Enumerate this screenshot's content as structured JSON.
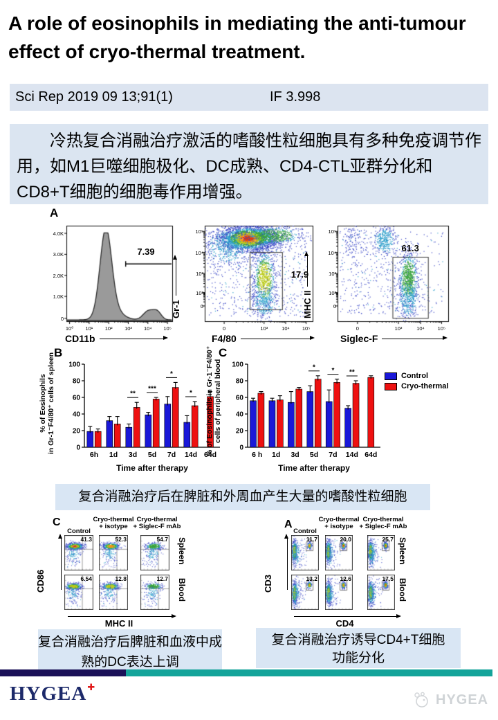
{
  "title": " A role of eosinophils in mediating the anti-tumour\neffect of cryo-thermal treatment.",
  "citation": {
    "reference": "Sci Rep 2019 09 13;91(1)",
    "impact_factor": "IF 3.998"
  },
  "summary": "冷热复合消融治疗激活的嗜酸性粒细胞具有多种免疫调节作用，如M1巨噬细胞极化、DC成熟、CD4-CTL亚群分化和CD8+T细胞的细胞毒作用增强。",
  "figure_a": {
    "panel": "A",
    "histogram": {
      "gate_value": "7.39",
      "xlabel": "CD11b",
      "yticks": [
        "4.0K",
        "3.0K",
        "2.0K",
        "1.0K",
        "0"
      ],
      "xticks": [
        "10⁰",
        "10¹",
        "10²",
        "10³",
        "10⁴",
        "10⁵"
      ]
    },
    "scatter_gr1": {
      "gate_value": "17.9",
      "xlabel": "F4/80",
      "ylabel": "Gr-1",
      "yticks": [
        "10⁵",
        "10⁴",
        "10³",
        "10²",
        "0"
      ],
      "xticks": [
        "0",
        "10³",
        "10⁴",
        "10⁵"
      ]
    },
    "scatter_mhc": {
      "gate_value": "61.3",
      "xlabel": "Siglec-F",
      "ylabel": "MHC II",
      "yticks": [
        "10⁵",
        "10⁴",
        "10³",
        "10²",
        "0"
      ],
      "xticks": [
        "0",
        "10³",
        "10⁴",
        "10⁵"
      ]
    }
  },
  "chart_data": [
    {
      "type": "bar",
      "panel": "B",
      "categories": [
        "6h",
        "1d",
        "3d",
        "5d",
        "7d",
        "14d",
        "64d"
      ],
      "series": [
        {
          "name": "Control",
          "color": "#1a18d8",
          "values": [
            19,
            32,
            24,
            39,
            52,
            30,
            null
          ],
          "errors": [
            6,
            5,
            4,
            3,
            9,
            8,
            null
          ]
        },
        {
          "name": "Cryo-thermal",
          "color": "#ee1111",
          "values": [
            19,
            28,
            48,
            58,
            72,
            50,
            61
          ],
          "errors": [
            3,
            9,
            6,
            2,
            6,
            5,
            6
          ]
        }
      ],
      "significance": [
        "",
        "",
        "**",
        "***",
        "*",
        "*",
        ""
      ],
      "xlabel": "Time after therapy",
      "ylabel": "% of Eosinophils\nin Gr-1⁻F4/80⁺ cells of spleen",
      "yticks": [
        0,
        20,
        40,
        60,
        80,
        100
      ],
      "ylim": [
        0,
        100
      ],
      "grid": false
    },
    {
      "type": "bar",
      "panel": "C",
      "categories": [
        "6 h",
        "1d",
        "3d",
        "5d",
        "7d",
        "14d",
        "64d"
      ],
      "series": [
        {
          "name": "Control",
          "color": "#1a18d8",
          "values": [
            56,
            56,
            54,
            67,
            55,
            47,
            null
          ],
          "errors": [
            3,
            3,
            13,
            7,
            14,
            3,
            null
          ]
        },
        {
          "name": "Cryo-thermal",
          "color": "#ee1111",
          "values": [
            65,
            57,
            70,
            82,
            78,
            77,
            84
          ],
          "errors": [
            2,
            5,
            2,
            4,
            4,
            3,
            2
          ]
        }
      ],
      "significance": [
        "",
        "",
        "",
        "*",
        "*",
        "**",
        ""
      ],
      "xlabel": "Time after therapy",
      "ylabel": "% of Eosinophils in Gr-1⁻F4/80⁺\ncells of peripheral blood",
      "yticks": [
        0,
        20,
        40,
        60,
        80,
        100
      ],
      "ylim": [
        0,
        100
      ],
      "grid": false,
      "legend": [
        "Control",
        "Cryo-thermal"
      ],
      "legend_position": "right"
    }
  ],
  "caption_eosinophil": "复合消融治疗后在脾脏和外周血产生大量的嗜酸性粒细胞",
  "figure_dc": {
    "panel": "C",
    "col_headers": [
      "Control",
      "Cryo-thermal\n+ isotype",
      "Cryo-thermal\n+ Siglec-F mAb"
    ],
    "row_labels": [
      "Spleen",
      "Blood"
    ],
    "values": [
      [
        "41.3",
        "52.3",
        "54.7"
      ],
      [
        "6.54",
        "12.8",
        "12.7"
      ]
    ],
    "xaxis": "MHC II",
    "yaxis": "CD86"
  },
  "figure_t": {
    "panel": "A",
    "col_headers": [
      "Control",
      "Cryo-thermal\n+ isotype",
      "Cryo-thermal\n+ Siglec-F mAb"
    ],
    "row_labels": [
      "Spleen",
      "Blood"
    ],
    "values": [
      [
        "11.7",
        "20.0",
        "25.7"
      ],
      [
        "13.2",
        "12.6",
        "17.5"
      ]
    ],
    "xaxis": "CD4",
    "yaxis": "CD3"
  },
  "caption_dc": "复合消融治疗后脾脏和血液中成\n熟的DC表达上调",
  "caption_t": "复合消融治疗诱导CD4+T细胞\n功能分化",
  "footer": {
    "logo_text": "HYGEA",
    "watermark_text": "HYGEA"
  },
  "colors": {
    "bar_navy": "#1a1158",
    "bar_teal": "#14a49a",
    "panel_blue": "#dbe5f1",
    "citebar_blue": "#dce4f0",
    "caption_blue": "#d9e6f4",
    "control_blue": "#1a18d8",
    "cryo_red": "#ee1111",
    "logo_navy": "#1d2a6a",
    "logo_cross_red": "#e11818"
  }
}
